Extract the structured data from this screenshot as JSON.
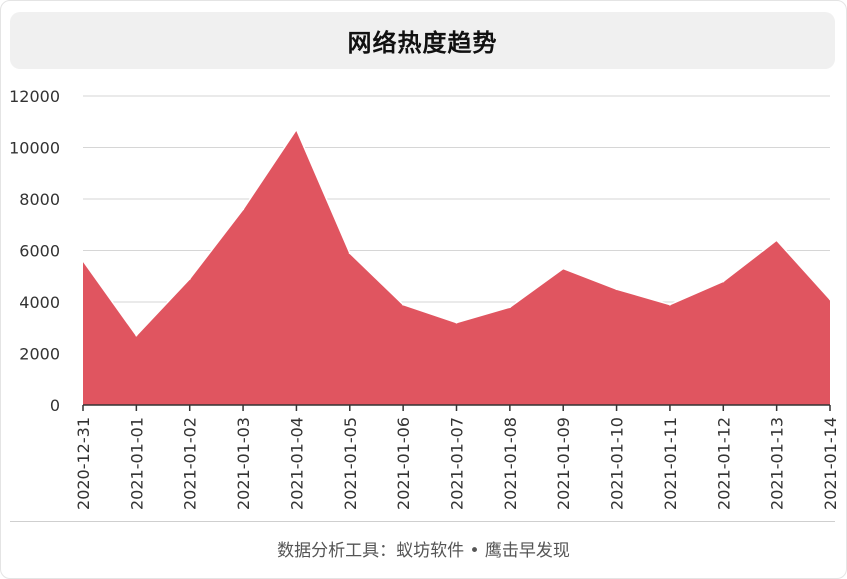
{
  "header": {
    "title": "网络热度趋势"
  },
  "footer": {
    "credit": "数据分析工具：蚁坊软件 • 鹰击早发现"
  },
  "colors": {
    "area_fill": "#e05560",
    "area_stroke": "#ffffff",
    "grid": "#d6d6d6",
    "axis": "#333333"
  },
  "chart_data": {
    "type": "area",
    "title": "网络热度趋势",
    "xlabel": "",
    "ylabel": "",
    "x": [
      "2020-12-31",
      "2021-01-01",
      "2021-01-02",
      "2021-01-03",
      "2021-01-04",
      "2021-01-05",
      "2021-01-06",
      "2021-01-07",
      "2021-01-08",
      "2021-01-09",
      "2021-01-10",
      "2021-01-11",
      "2021-01-12",
      "2021-01-13",
      "2021-01-14"
    ],
    "series": [
      {
        "values": [
          5600,
          2700,
          4900,
          7600,
          10700,
          5900,
          3900,
          3200,
          3800,
          5300,
          4500,
          3900,
          4800,
          6400,
          4100
        ]
      }
    ],
    "yticks": [
      0,
      2000,
      4000,
      6000,
      8000,
      10000,
      12000
    ],
    "ylim": [
      0,
      12000
    ],
    "grid": true,
    "legend": "none"
  }
}
